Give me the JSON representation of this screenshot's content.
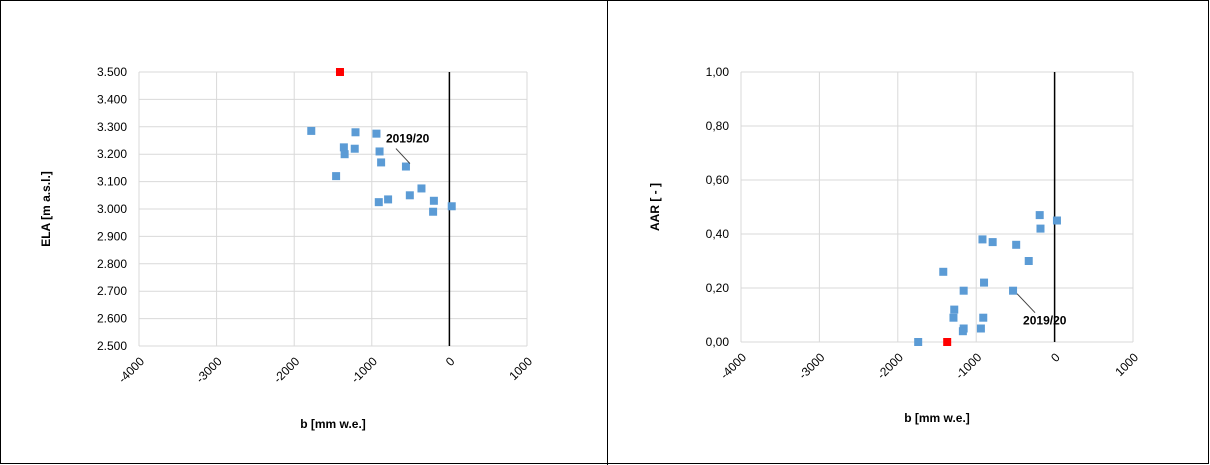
{
  "colors": {
    "point": "#5b9bd5",
    "highlight": "#ff0000",
    "grid": "#d9d9d9",
    "zero_line": "#000000",
    "text": "#000000",
    "border": "#000000"
  },
  "chart_data": [
    {
      "type": "scatter",
      "title": "",
      "xlabel": "b [mm w.e.]",
      "ylabel": "ELA [m a.s.l.]",
      "xlim": [
        -4000,
        1000
      ],
      "ylim": [
        2500,
        3500
      ],
      "x_ticks": [
        "-4000",
        "-3000",
        "-2000",
        "-1000",
        "0",
        "1000"
      ],
      "y_ticks": [
        "2.500",
        "2.600",
        "2.700",
        "2.800",
        "2.900",
        "3.000",
        "3.100",
        "3.200",
        "3.300",
        "3.400",
        "3.500"
      ],
      "grid": true,
      "vertical_reference_line_x": 0,
      "series": [
        {
          "points": [
            {
              "x": -1780,
              "y": 3285
            },
            {
              "x": -1460,
              "y": 3120
            },
            {
              "x": -1360,
              "y": 3225
            },
            {
              "x": -1350,
              "y": 3200
            },
            {
              "x": -1210,
              "y": 3280
            },
            {
              "x": -1220,
              "y": 3220
            },
            {
              "x": -940,
              "y": 3275
            },
            {
              "x": -900,
              "y": 3210
            },
            {
              "x": -880,
              "y": 3170
            },
            {
              "x": -910,
              "y": 3025
            },
            {
              "x": -790,
              "y": 3035
            },
            {
              "x": -560,
              "y": 3155
            },
            {
              "x": -510,
              "y": 3050
            },
            {
              "x": -360,
              "y": 3075
            },
            {
              "x": -200,
              "y": 3030
            },
            {
              "x": -210,
              "y": 2990
            },
            {
              "x": 30,
              "y": 3010
            }
          ]
        },
        {
          "points": [
            {
              "x": -1410,
              "y": 3500
            }
          ]
        }
      ],
      "annotations": [
        {
          "text": "2019/20",
          "x": -560,
          "y": 3155
        }
      ]
    },
    {
      "type": "scatter",
      "title": "",
      "xlabel": "b [mm w.e.]",
      "ylabel": "AAR [ - ]",
      "xlim": [
        -4000,
        1000
      ],
      "ylim": [
        0,
        1
      ],
      "x_ticks": [
        "-4000",
        "-3000",
        "-2000",
        "-1000",
        "0",
        "1000"
      ],
      "y_ticks": [
        "0,00",
        "0,20",
        "0,40",
        "0,60",
        "0,80",
        "1,00"
      ],
      "grid": true,
      "vertical_reference_line_x": 0,
      "series": [
        {
          "points": [
            {
              "x": -1740,
              "y": 0.0
            },
            {
              "x": -1420,
              "y": 0.26
            },
            {
              "x": -1280,
              "y": 0.12
            },
            {
              "x": -1290,
              "y": 0.09
            },
            {
              "x": -1160,
              "y": 0.19
            },
            {
              "x": -1160,
              "y": 0.05
            },
            {
              "x": -1170,
              "y": 0.04
            },
            {
              "x": -920,
              "y": 0.38
            },
            {
              "x": -900,
              "y": 0.22
            },
            {
              "x": -910,
              "y": 0.09
            },
            {
              "x": -940,
              "y": 0.05
            },
            {
              "x": -790,
              "y": 0.37
            },
            {
              "x": -530,
              "y": 0.19
            },
            {
              "x": -490,
              "y": 0.36
            },
            {
              "x": -330,
              "y": 0.3
            },
            {
              "x": -190,
              "y": 0.47
            },
            {
              "x": -180,
              "y": 0.42
            },
            {
              "x": 30,
              "y": 0.45
            }
          ]
        },
        {
          "points": [
            {
              "x": -1370,
              "y": 0.0
            }
          ]
        }
      ],
      "annotations": [
        {
          "text": "2019/20",
          "x": -530,
          "y": 0.19
        }
      ]
    }
  ]
}
